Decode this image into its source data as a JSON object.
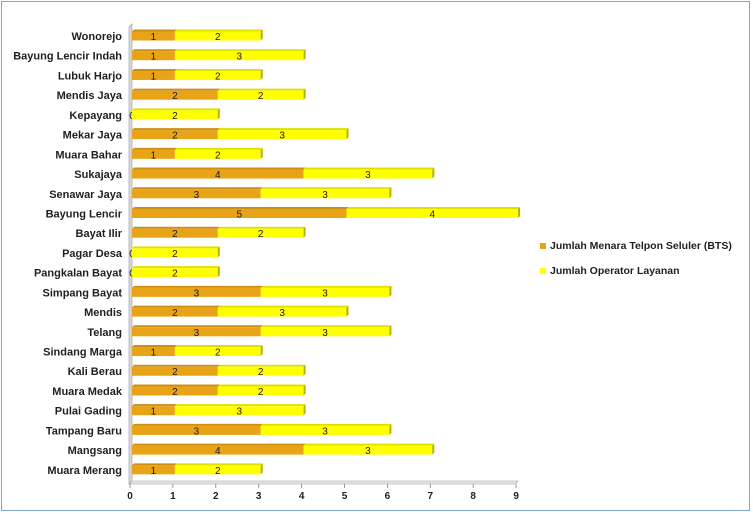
{
  "chart_data": {
    "type": "bar",
    "orientation": "horizontal",
    "stacked": true,
    "categories": [
      "Wonorejo",
      "Bayung Lencir Indah",
      "Lubuk Harjo",
      "Mendis Jaya",
      "Kepayang",
      "Mekar Jaya",
      "Muara Bahar",
      "Sukajaya",
      "Senawar Jaya",
      "Bayung Lencir",
      "Bayat Ilir",
      "Pagar Desa",
      "Pangkalan Bayat",
      "Simpang Bayat",
      "Mendis",
      "Telang",
      "Sindang Marga",
      "Kali Berau",
      "Muara Medak",
      "Pulai Gading",
      "Tampang Baru",
      "Mangsang",
      "Muara Merang"
    ],
    "series": [
      {
        "name": "Jumlah Menara Telpon Seluler (BTS)",
        "color": "#E8A317",
        "values": [
          1,
          1,
          1,
          2,
          0,
          2,
          1,
          4,
          3,
          5,
          2,
          0,
          0,
          3,
          2,
          3,
          1,
          2,
          2,
          1,
          3,
          4,
          1
        ]
      },
      {
        "name": "Jumlah Operator Layanan",
        "color": "#FFFF00",
        "values": [
          2,
          3,
          2,
          2,
          2,
          3,
          2,
          3,
          3,
          4,
          2,
          2,
          2,
          3,
          3,
          3,
          2,
          2,
          2,
          3,
          3,
          3,
          2
        ]
      }
    ],
    "xlim": [
      0,
      9
    ],
    "xticks": [
      "0",
      "1",
      "2",
      "3",
      "4",
      "5",
      "6",
      "7",
      "8",
      "9"
    ],
    "grid": false,
    "legend_position": "right"
  }
}
